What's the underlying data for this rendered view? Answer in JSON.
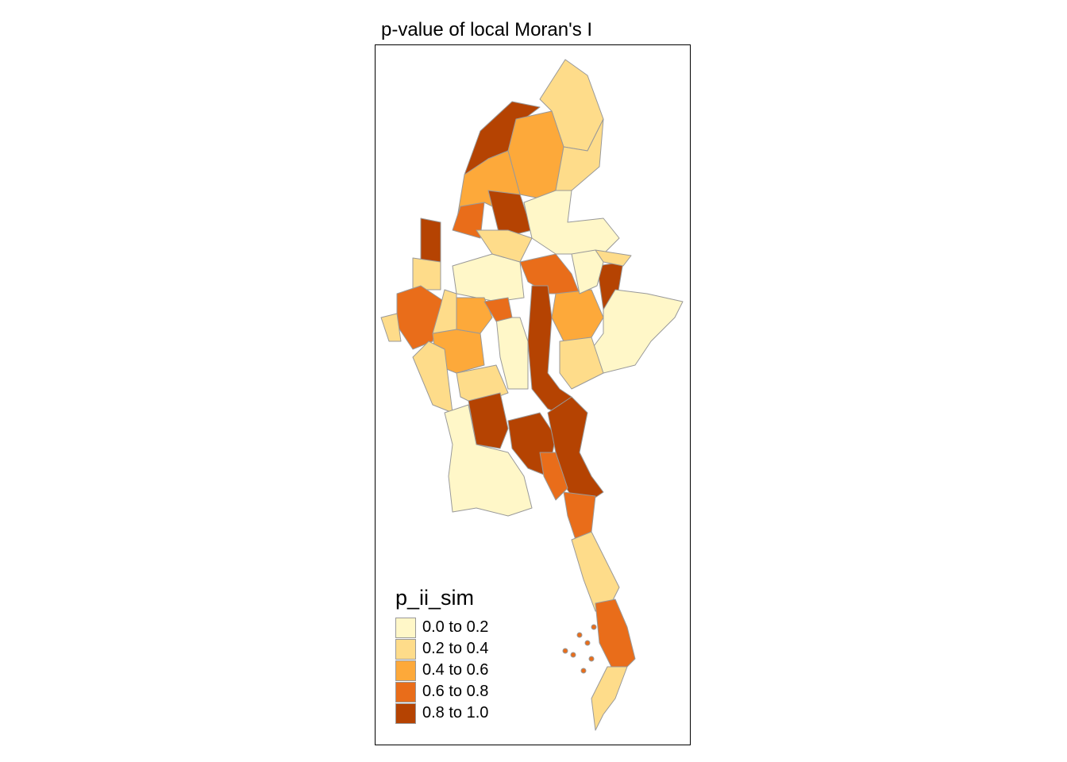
{
  "title": "p-value of local Moran's I",
  "legend": {
    "title": "p_ii_sim",
    "classes": [
      {
        "label": "0.0 to 0.2",
        "color": "#FFF7C8"
      },
      {
        "label": "0.2 to 0.4",
        "color": "#FEDC8A"
      },
      {
        "label": "0.4 to 0.6",
        "color": "#FDA93A"
      },
      {
        "label": "0.6 to 0.8",
        "color": "#E96D1A"
      },
      {
        "label": "0.8 to 1.0",
        "color": "#B54302"
      }
    ]
  },
  "border_color": "#999999",
  "region_classes": [
    1,
    4,
    2,
    1,
    2,
    4,
    3,
    4,
    1,
    0,
    0,
    1,
    4,
    0,
    3,
    2,
    4,
    1,
    0,
    0,
    1,
    3,
    1,
    2,
    1,
    2,
    1,
    3,
    1,
    4,
    4,
    3,
    3,
    4,
    0,
    1,
    3,
    1
  ]
}
